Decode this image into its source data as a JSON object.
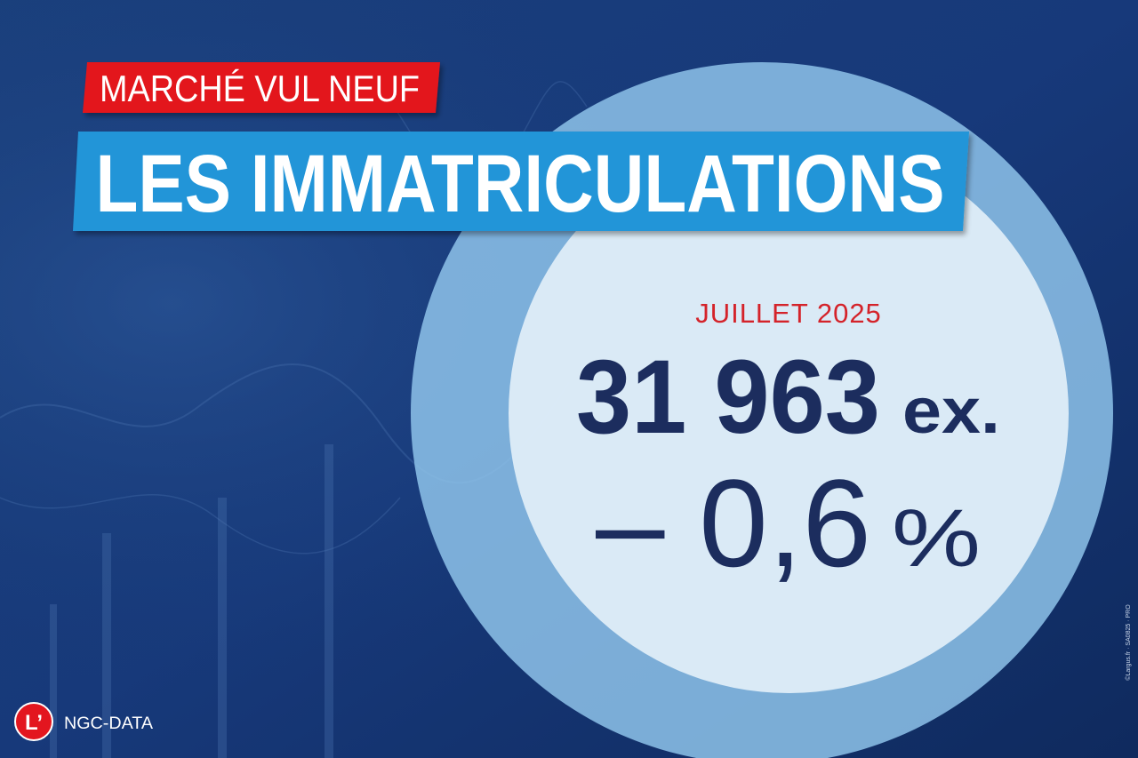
{
  "header": {
    "tag": "MARCHÉ VUL NEUF",
    "title": "LES IMMATRICULATIONS"
  },
  "stat": {
    "period": "JUILLET 2025",
    "value": "31 963",
    "unit": "ex.",
    "change": "– 0,6",
    "change_unit": "%"
  },
  "footer": {
    "logo_mark": "L’",
    "brand": "NGC-DATA",
    "credit": "©Largus.fr · SA0825 · PRO"
  }
}
